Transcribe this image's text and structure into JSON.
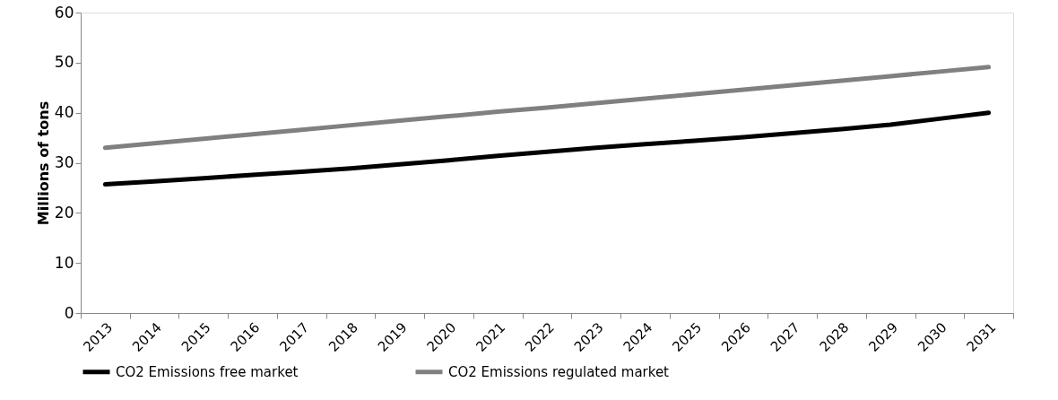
{
  "chart_data": {
    "type": "line",
    "ylabel": "Millions of tons",
    "categories": [
      "2013",
      "2014",
      "2015",
      "2016",
      "2017",
      "2018",
      "2019",
      "2020",
      "2021",
      "2022",
      "2023",
      "2024",
      "2025",
      "2026",
      "2027",
      "2028",
      "2029",
      "2030",
      "2031"
    ],
    "series": [
      {
        "name": "CO2 Emissions free market",
        "color": "#000000",
        "values": [
          25.7,
          26.3,
          26.9,
          27.6,
          28.2,
          28.9,
          29.7,
          30.5,
          31.4,
          32.2,
          33.0,
          33.7,
          34.4,
          35.1,
          35.9,
          36.7,
          37.6,
          38.8,
          40.0
        ]
      },
      {
        "name": "CO2 Emissions regulated market",
        "color": "#808080",
        "values": [
          33.0,
          33.9,
          34.8,
          35.7,
          36.6,
          37.5,
          38.4,
          39.3,
          40.2,
          41.0,
          41.9,
          42.8,
          43.7,
          44.6,
          45.5,
          46.4,
          47.3,
          48.2,
          49.1
        ]
      }
    ],
    "ylim": [
      0,
      60
    ],
    "yticks": [
      0,
      10,
      20,
      30,
      40,
      50,
      60
    ],
    "grid": false,
    "legend": "bottom",
    "marker": "none",
    "line_style": "solid"
  }
}
